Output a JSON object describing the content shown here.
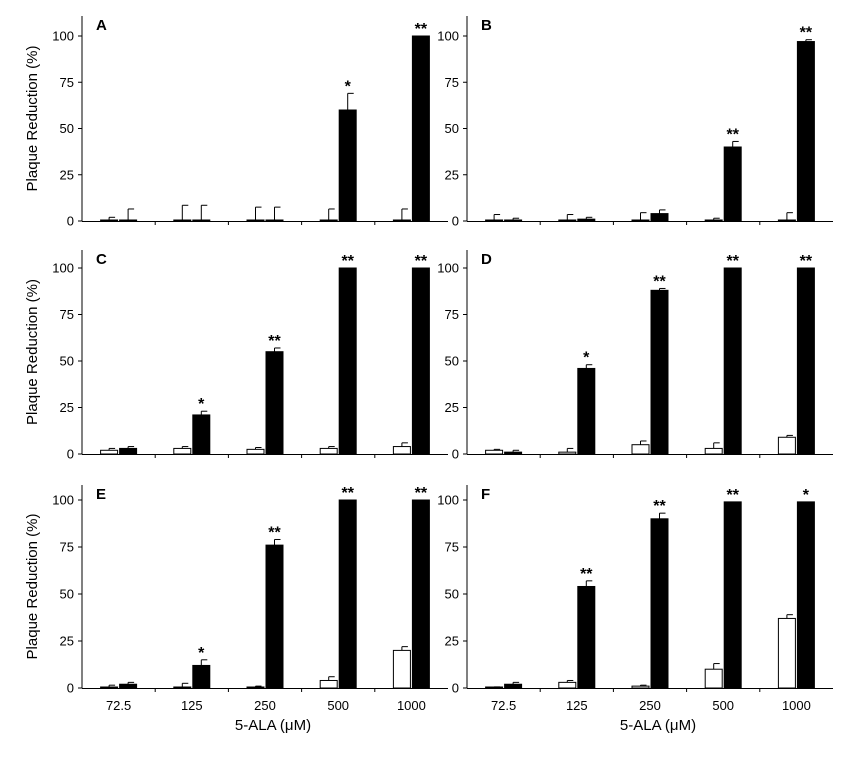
{
  "chart_data": {
    "type": "bar",
    "categories": [
      "72.5",
      "125",
      "250",
      "500",
      "1000"
    ],
    "ylabel": "Plaque Reduction (%)",
    "xlabel": "5-ALA (μM)",
    "yticks": [
      "0",
      "25",
      "50",
      "75",
      "100"
    ],
    "ylim": [
      0,
      110
    ],
    "colors": {
      "open": "#ffffff",
      "filled": "#000000",
      "axis": "#000000"
    },
    "panels": [
      {
        "label": "A",
        "open": {
          "values": [
            0.5,
            0.5,
            0.5,
            0.5,
            0.5
          ],
          "errors": [
            1.5,
            8,
            7,
            6,
            6
          ]
        },
        "filled": {
          "values": [
            0.5,
            0.5,
            0.5,
            60,
            100
          ],
          "errors": [
            6,
            8,
            7,
            9,
            0
          ]
        },
        "stars": [
          "",
          "",
          "",
          "*",
          "**"
        ]
      },
      {
        "label": "B",
        "open": {
          "values": [
            0.5,
            0.5,
            0.5,
            0.5,
            0.5
          ],
          "errors": [
            3,
            3,
            4,
            1,
            4
          ]
        },
        "filled": {
          "values": [
            0.5,
            1,
            4,
            40,
            97
          ],
          "errors": [
            1,
            1,
            2,
            3,
            1
          ]
        },
        "stars": [
          "",
          "",
          "",
          "**",
          "**"
        ]
      },
      {
        "label": "C",
        "open": {
          "values": [
            2,
            3,
            2.5,
            3,
            4
          ],
          "errors": [
            1,
            1,
            1,
            1,
            2
          ]
        },
        "filled": {
          "values": [
            3,
            21,
            55,
            100,
            100
          ],
          "errors": [
            1,
            2,
            2,
            0,
            0
          ]
        },
        "stars": [
          "",
          "*",
          "**",
          "**",
          "**"
        ]
      },
      {
        "label": "D",
        "open": {
          "values": [
            2,
            1,
            5,
            3,
            9
          ],
          "errors": [
            0.5,
            2,
            2,
            3,
            1
          ]
        },
        "filled": {
          "values": [
            1,
            46,
            88,
            100,
            100
          ],
          "errors": [
            1,
            2,
            1,
            0,
            0
          ]
        },
        "stars": [
          "",
          "*",
          "**",
          "**",
          "**"
        ]
      },
      {
        "label": "E",
        "open": {
          "values": [
            0.5,
            0.5,
            0.5,
            4,
            20
          ],
          "errors": [
            1,
            2,
            0.5,
            2,
            2
          ]
        },
        "filled": {
          "values": [
            2,
            12,
            76,
            100,
            100
          ],
          "errors": [
            1,
            3,
            3,
            0,
            0
          ]
        },
        "stars": [
          "",
          "*",
          "**",
          "**",
          "**"
        ]
      },
      {
        "label": "F",
        "open": {
          "values": [
            0.3,
            3,
            1,
            10,
            37
          ],
          "errors": [
            0.3,
            1,
            0.5,
            3,
            2
          ]
        },
        "filled": {
          "values": [
            2,
            54,
            90,
            99,
            99
          ],
          "errors": [
            1,
            3,
            3,
            0,
            0
          ]
        },
        "stars": [
          "",
          "**",
          "**",
          "**",
          "*"
        ]
      }
    ]
  }
}
